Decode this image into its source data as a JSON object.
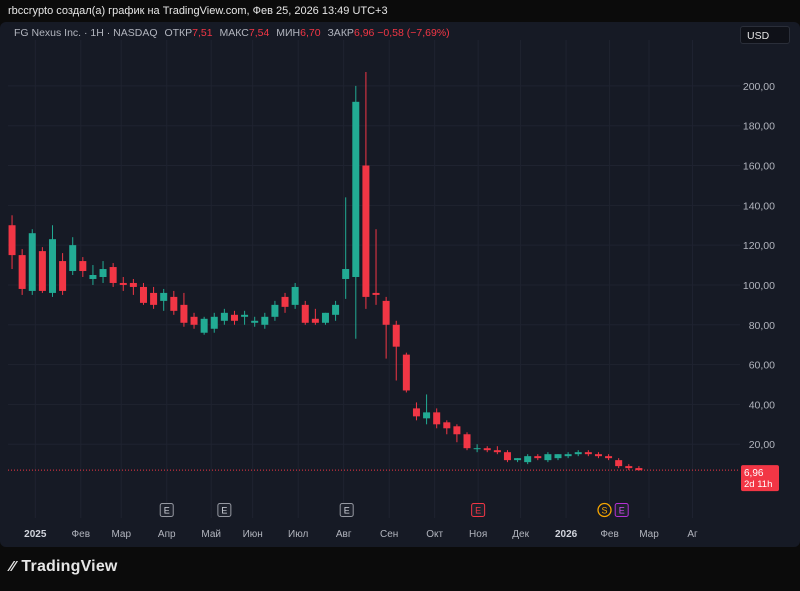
{
  "header": {
    "caption": "rbccrypto создал(а) график на TradingView.com, Фев 25, 2026 13:49 UTC+3"
  },
  "legend": {
    "symbol": "FG Nexus Inc. · 1H · NASDAQ",
    "open_label": "ОТКР",
    "open": "7,51",
    "high_label": "МАКС",
    "high": "7,54",
    "low_label": "МИН",
    "low": "6,70",
    "close_label": "ЗАКР",
    "close": "6,96",
    "change": "−0,58 (−7,69%)"
  },
  "currency_button": "USD",
  "price_badge": {
    "price": "6,96",
    "countdown": "2d 11h"
  },
  "footer": {
    "brand": "TradingView"
  },
  "colors": {
    "up": "#22ab94",
    "down": "#f23645",
    "background": "#161a25",
    "grid": "#1f2330"
  },
  "chart_data": {
    "type": "candlestick",
    "x_ticks": [
      {
        "label": "2025",
        "x": 0.0,
        "bold": true
      },
      {
        "label": "Фев",
        "x": 4.5
      },
      {
        "label": "Мар",
        "x": 8.5
      },
      {
        "label": "Апр",
        "x": 13.0
      },
      {
        "label": "Май",
        "x": 17.4
      },
      {
        "label": "Июн",
        "x": 21.5
      },
      {
        "label": "Июл",
        "x": 26.0
      },
      {
        "label": "Авг",
        "x": 30.5
      },
      {
        "label": "Сен",
        "x": 35.0
      },
      {
        "label": "Окт",
        "x": 39.5
      },
      {
        "label": "Ноя",
        "x": 43.8
      },
      {
        "label": "Дек",
        "x": 48.0
      },
      {
        "label": "2026",
        "x": 52.5,
        "bold": true
      },
      {
        "label": "Фев",
        "x": 56.8
      },
      {
        "label": "Мар",
        "x": 60.7
      },
      {
        "label": "Аг",
        "x": 65.0
      }
    ],
    "y_ticks": [
      "200,00",
      "180,00",
      "160,00",
      "140,00",
      "120,00",
      "100,00",
      "80,00",
      "60,00",
      "40,00",
      "20,00"
    ],
    "ylim": [
      -3,
      212
    ],
    "xlim": [
      -2.7,
      69.7
    ],
    "last_price": 6.96,
    "events": [
      {
        "label": "E",
        "x": 13.0,
        "type": "earnings"
      },
      {
        "label": "E",
        "x": 18.7,
        "type": "earnings"
      },
      {
        "label": "E",
        "x": 30.8,
        "type": "earnings"
      },
      {
        "label": "E",
        "x": 43.8,
        "type": "earnings-red"
      },
      {
        "label": "S",
        "x": 56.3,
        "type": "split"
      },
      {
        "label": "E",
        "x": 58.0,
        "type": "earnings-purple"
      }
    ],
    "candles": [
      {
        "x": -2.3,
        "o": 130,
        "h": 135,
        "l": 108,
        "c": 115
      },
      {
        "x": -1.3,
        "o": 115,
        "h": 118,
        "l": 95,
        "c": 98
      },
      {
        "x": -0.3,
        "o": 97,
        "h": 128,
        "l": 95,
        "c": 126
      },
      {
        "x": 0.7,
        "o": 117,
        "h": 119,
        "l": 96,
        "c": 97
      },
      {
        "x": 1.7,
        "o": 96,
        "h": 130,
        "l": 94,
        "c": 123
      },
      {
        "x": 2.7,
        "o": 112,
        "h": 116,
        "l": 95,
        "c": 97
      },
      {
        "x": 3.7,
        "o": 107,
        "h": 124,
        "l": 105,
        "c": 120
      },
      {
        "x": 4.7,
        "o": 112,
        "h": 114,
        "l": 104,
        "c": 107
      },
      {
        "x": 5.7,
        "o": 103,
        "h": 110,
        "l": 100,
        "c": 105
      },
      {
        "x": 6.7,
        "o": 104,
        "h": 112,
        "l": 101,
        "c": 108
      },
      {
        "x": 7.7,
        "o": 109,
        "h": 111,
        "l": 99,
        "c": 101
      },
      {
        "x": 8.7,
        "o": 101,
        "h": 104,
        "l": 97,
        "c": 100
      },
      {
        "x": 9.7,
        "o": 101,
        "h": 103,
        "l": 95,
        "c": 99
      },
      {
        "x": 10.7,
        "o": 99,
        "h": 101,
        "l": 90,
        "c": 91
      },
      {
        "x": 11.7,
        "o": 96,
        "h": 99,
        "l": 88,
        "c": 90
      },
      {
        "x": 12.7,
        "o": 92,
        "h": 98,
        "l": 87,
        "c": 96
      },
      {
        "x": 13.7,
        "o": 94,
        "h": 97,
        "l": 85,
        "c": 87
      },
      {
        "x": 14.7,
        "o": 90,
        "h": 96,
        "l": 79,
        "c": 81
      },
      {
        "x": 15.7,
        "o": 84,
        "h": 86,
        "l": 78,
        "c": 80
      },
      {
        "x": 16.7,
        "o": 76,
        "h": 84,
        "l": 75,
        "c": 83
      },
      {
        "x": 17.7,
        "o": 78,
        "h": 86,
        "l": 76,
        "c": 84
      },
      {
        "x": 18.7,
        "o": 82,
        "h": 88,
        "l": 80,
        "c": 86
      },
      {
        "x": 19.7,
        "o": 85,
        "h": 87,
        "l": 80,
        "c": 82
      },
      {
        "x": 20.7,
        "o": 84,
        "h": 87,
        "l": 80,
        "c": 85
      },
      {
        "x": 21.7,
        "o": 81,
        "h": 84,
        "l": 79,
        "c": 82
      },
      {
        "x": 22.7,
        "o": 80,
        "h": 86,
        "l": 78,
        "c": 84
      },
      {
        "x": 23.7,
        "o": 84,
        "h": 92,
        "l": 82,
        "c": 90
      },
      {
        "x": 24.7,
        "o": 94,
        "h": 96,
        "l": 86,
        "c": 89
      },
      {
        "x": 25.7,
        "o": 90,
        "h": 101,
        "l": 88,
        "c": 99
      },
      {
        "x": 26.7,
        "o": 90,
        "h": 92,
        "l": 80,
        "c": 81
      },
      {
        "x": 27.7,
        "o": 83,
        "h": 88,
        "l": 80,
        "c": 81
      },
      {
        "x": 28.7,
        "o": 81,
        "h": 86,
        "l": 80,
        "c": 86
      },
      {
        "x": 29.7,
        "o": 85,
        "h": 92,
        "l": 82,
        "c": 90
      },
      {
        "x": 30.7,
        "o": 103,
        "h": 144,
        "l": 93,
        "c": 108
      },
      {
        "x": 31.7,
        "o": 104,
        "h": 200,
        "l": 73,
        "c": 192
      },
      {
        "x": 32.7,
        "o": 160,
        "h": 207,
        "l": 88,
        "c": 94
      },
      {
        "x": 33.7,
        "o": 96,
        "h": 128,
        "l": 90,
        "c": 95
      },
      {
        "x": 34.7,
        "o": 92,
        "h": 94,
        "l": 63,
        "c": 80
      },
      {
        "x": 35.7,
        "o": 80,
        "h": 82,
        "l": 52,
        "c": 69
      },
      {
        "x": 36.7,
        "o": 65,
        "h": 66,
        "l": 46,
        "c": 47
      },
      {
        "x": 37.7,
        "o": 38,
        "h": 41,
        "l": 32,
        "c": 34
      },
      {
        "x": 38.7,
        "o": 33,
        "h": 45,
        "l": 30,
        "c": 36
      },
      {
        "x": 39.7,
        "o": 36,
        "h": 38,
        "l": 28,
        "c": 30
      },
      {
        "x": 40.7,
        "o": 31,
        "h": 32,
        "l": 25,
        "c": 28
      },
      {
        "x": 41.7,
        "o": 29,
        "h": 30,
        "l": 21,
        "c": 25
      },
      {
        "x": 42.7,
        "o": 25,
        "h": 26,
        "l": 17,
        "c": 18
      },
      {
        "x": 43.7,
        "o": 18,
        "h": 20,
        "l": 16,
        "c": 18
      },
      {
        "x": 44.7,
        "o": 18,
        "h": 19,
        "l": 16,
        "c": 17
      },
      {
        "x": 45.7,
        "o": 17,
        "h": 19,
        "l": 15,
        "c": 16
      },
      {
        "x": 46.7,
        "o": 16,
        "h": 17,
        "l": 11,
        "c": 12
      },
      {
        "x": 47.7,
        "o": 12,
        "h": 13,
        "l": 11,
        "c": 13
      },
      {
        "x": 48.7,
        "o": 11,
        "h": 15,
        "l": 10,
        "c": 14
      },
      {
        "x": 49.7,
        "o": 14,
        "h": 15,
        "l": 12,
        "c": 13
      },
      {
        "x": 50.7,
        "o": 12,
        "h": 16,
        "l": 11,
        "c": 15
      },
      {
        "x": 51.7,
        "o": 13,
        "h": 15,
        "l": 12,
        "c": 15
      },
      {
        "x": 52.7,
        "o": 14,
        "h": 16,
        "l": 13,
        "c": 15
      },
      {
        "x": 53.7,
        "o": 15,
        "h": 17,
        "l": 14,
        "c": 16
      },
      {
        "x": 54.7,
        "o": 16,
        "h": 17,
        "l": 14,
        "c": 15
      },
      {
        "x": 55.7,
        "o": 15,
        "h": 16,
        "l": 13,
        "c": 14
      },
      {
        "x": 56.7,
        "o": 14,
        "h": 15,
        "l": 12,
        "c": 13
      },
      {
        "x": 57.7,
        "o": 12,
        "h": 13,
        "l": 8,
        "c": 9
      },
      {
        "x": 58.7,
        "o": 9,
        "h": 10,
        "l": 7,
        "c": 8
      },
      {
        "x": 59.7,
        "o": 8,
        "h": 9,
        "l": 6.7,
        "c": 6.96
      }
    ]
  }
}
